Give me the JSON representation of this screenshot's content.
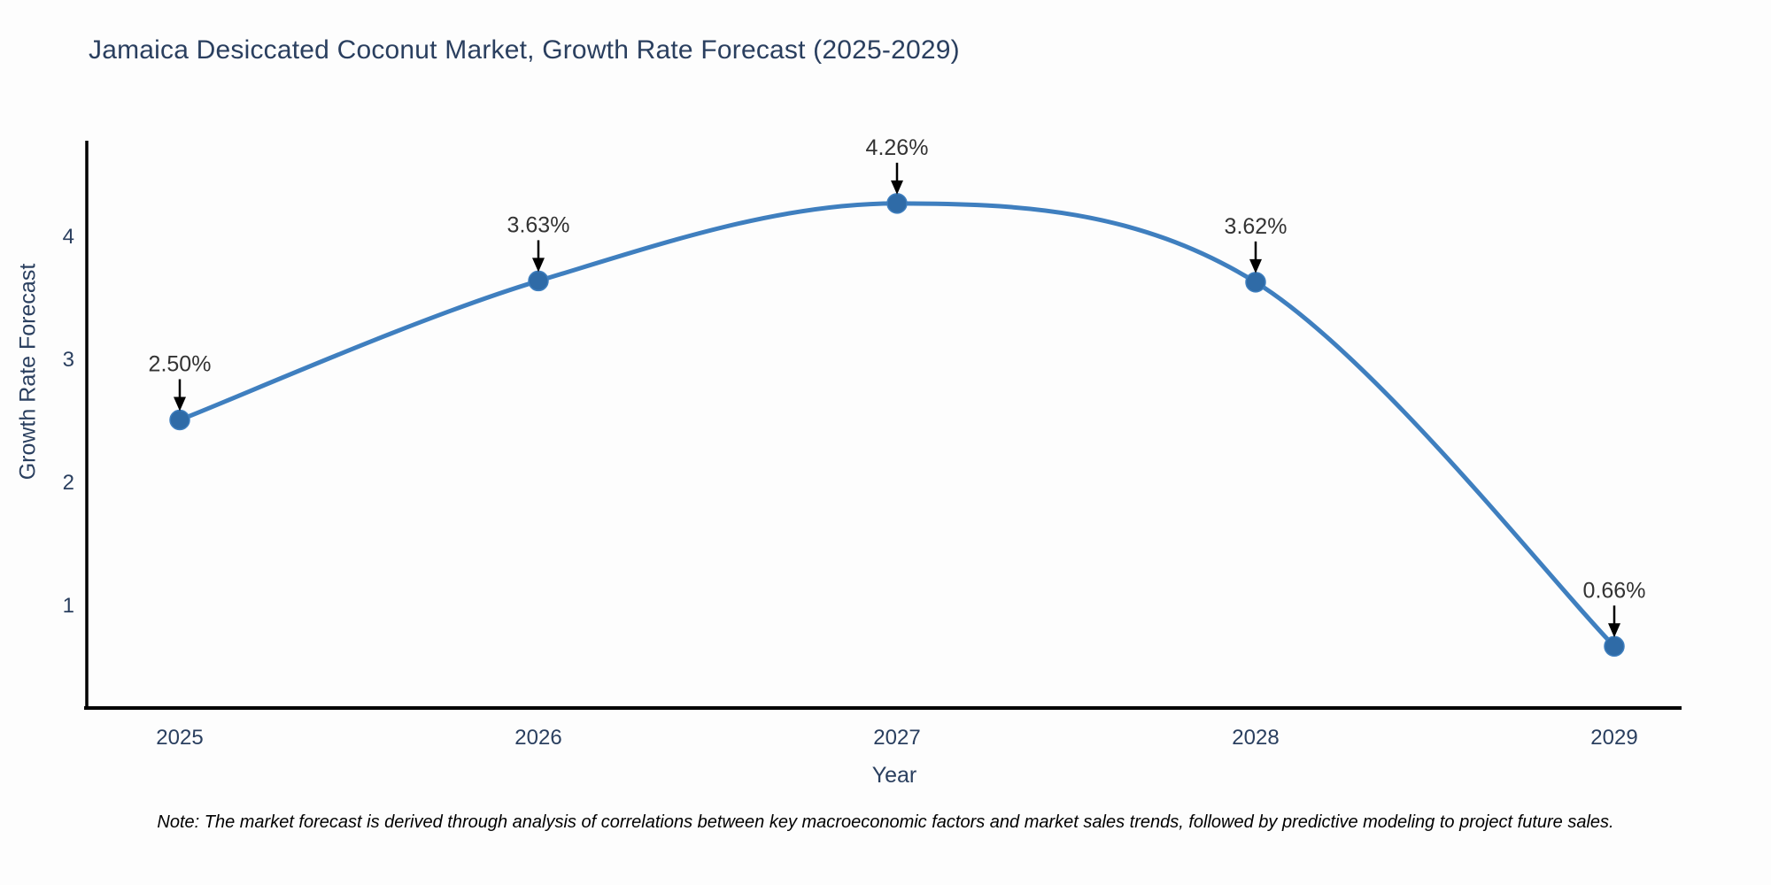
{
  "chart_data": {
    "type": "line",
    "title": "Jamaica Desiccated Coconut Market, Growth Rate Forecast (2025-2029)",
    "xlabel": "Year",
    "ylabel": "Growth Rate Forecast",
    "categories": [
      "2025",
      "2026",
      "2027",
      "2028",
      "2029"
    ],
    "series": [
      {
        "name": "Growth Rate Forecast",
        "values": [
          2.5,
          3.63,
          4.26,
          3.62,
          0.66
        ]
      }
    ],
    "point_labels": [
      "2.50%",
      "3.63%",
      "4.26%",
      "3.62%",
      "0.66%"
    ],
    "yticks": [
      1,
      2,
      3,
      4
    ],
    "ylim": [
      0.15,
      4.85
    ],
    "grid": false,
    "legend_position": "none",
    "line_shape": "spline",
    "line_color": "#3f7fbf",
    "marker_color": "#2f6ba7",
    "axis_color": "#000000",
    "tick_color": "#2a3f5f",
    "annotation_color": "#333333",
    "arrow_color": "#000000",
    "background_color": "#fdfdfd"
  },
  "note": "Note: The market forecast is derived through analysis of correlations between key macroeconomic factors and market sales trends, followed by predictive modeling to project future sales."
}
